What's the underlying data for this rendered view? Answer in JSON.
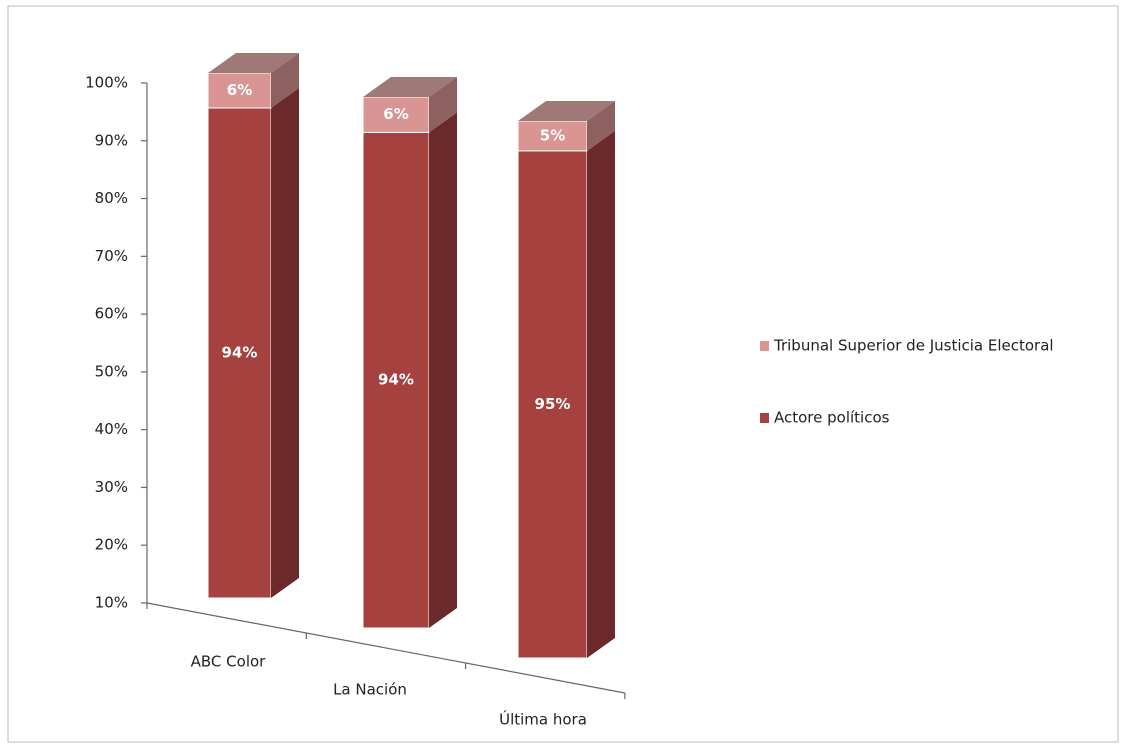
{
  "chart_data": {
    "type": "bar3d_stacked",
    "categories": [
      "ABC Color",
      "La Nación",
      "Última hora"
    ],
    "series": [
      {
        "name": "Actore políticos",
        "color": "#a5413f",
        "values": [
          94,
          94,
          95
        ],
        "value_labels": [
          "94%",
          "94%",
          "95%"
        ]
      },
      {
        "name": "Tribunal Superior de Justicia Electoral",
        "color": "#d99594",
        "values": [
          6,
          6,
          5
        ],
        "value_labels": [
          "6%",
          "6%",
          "5%"
        ]
      }
    ],
    "ylim": [
      10,
      100
    ],
    "yticks": [
      {
        "value": 10,
        "label": "10%"
      },
      {
        "value": 20,
        "label": "20%"
      },
      {
        "value": 30,
        "label": "30%"
      },
      {
        "value": 40,
        "label": "40%"
      },
      {
        "value": 50,
        "label": "50%"
      },
      {
        "value": 60,
        "label": "60%"
      },
      {
        "value": 70,
        "label": "70%"
      },
      {
        "value": 80,
        "label": "80%"
      },
      {
        "value": 90,
        "label": "90%"
      },
      {
        "value": 100,
        "label": "100%"
      }
    ],
    "legend": "right"
  }
}
